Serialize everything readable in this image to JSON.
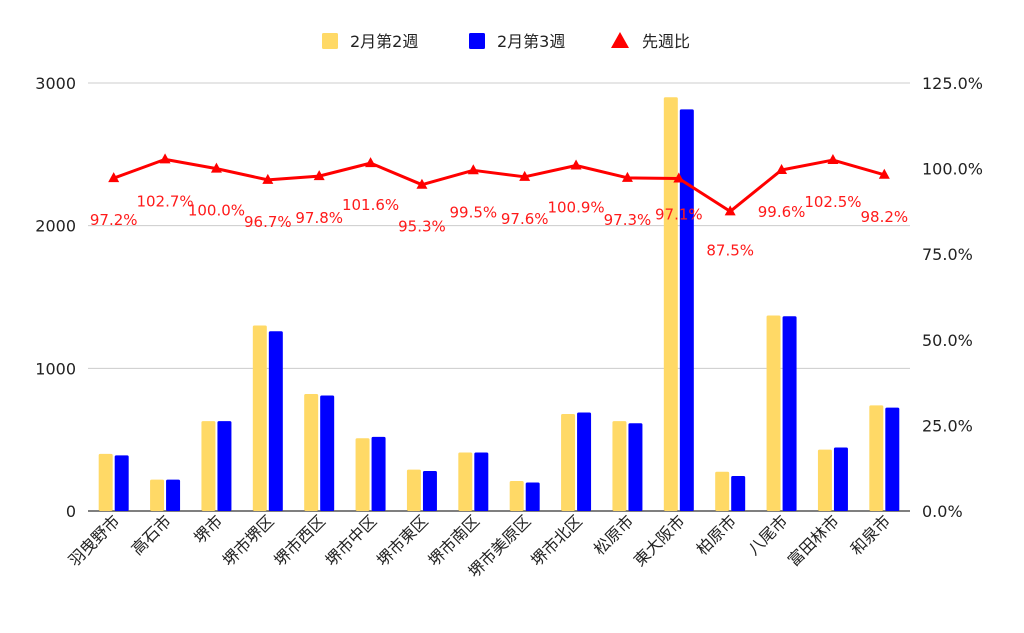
{
  "chart_data": {
    "type": "bar",
    "categories": [
      "羽曳野市",
      "高石市",
      "堺市",
      "堺市堺区",
      "堺市西区",
      "堺市中区",
      "堺市東区",
      "堺市南区",
      "堺市美原区",
      "堺市北区",
      "松原市",
      "東大阪市",
      "柏原市",
      "八尾市",
      "富田林市",
      "和泉市"
    ],
    "series": [
      {
        "name": "2月第2週",
        "type": "bar",
        "axis": "left",
        "color": "#ffd966",
        "values": [
          400,
          220,
          630,
          1300,
          820,
          510,
          290,
          410,
          210,
          680,
          630,
          2900,
          275,
          1370,
          430,
          740
        ]
      },
      {
        "name": "2月第3週",
        "type": "bar",
        "axis": "left",
        "color": "#0000ff",
        "values": [
          390,
          220,
          630,
          1260,
          810,
          520,
          280,
          410,
          200,
          690,
          615,
          2815,
          245,
          1365,
          445,
          725
        ]
      },
      {
        "name": "先週比",
        "type": "line",
        "axis": "right",
        "color": "#ff0000",
        "marker": "triangle",
        "values": [
          97.2,
          102.7,
          100.0,
          96.7,
          97.8,
          101.6,
          95.3,
          99.5,
          97.6,
          100.9,
          97.3,
          97.1,
          87.5,
          99.6,
          102.5,
          98.2
        ],
        "labels": [
          "97.2%",
          "102.7%",
          "100.0%",
          "96.7%",
          "97.8%",
          "101.6%",
          "95.3%",
          "99.5%",
          "97.6%",
          "100.9%",
          "97.3%",
          "97.1%",
          "87.5%",
          "99.6%",
          "102.5%",
          "98.2%"
        ]
      }
    ],
    "y_left": {
      "ylim": [
        0,
        3000
      ],
      "ticks": [
        0,
        1000,
        2000,
        3000
      ],
      "tick_labels": [
        "0",
        "1000",
        "2000",
        "3000"
      ]
    },
    "y_right": {
      "ylim": [
        0,
        125
      ],
      "ticks": [
        0,
        25,
        50,
        75,
        100,
        125
      ],
      "tick_labels": [
        "0.0%",
        "25.0%",
        "50.0%",
        "75.0%",
        "100.0%",
        "125.0%"
      ]
    },
    "grid": true,
    "legend": "top"
  }
}
